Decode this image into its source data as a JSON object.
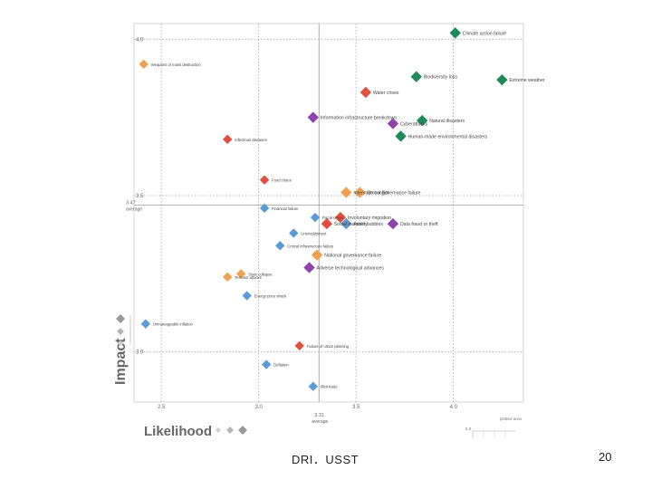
{
  "chart_data": {
    "type": "scatter",
    "title": "",
    "xlabel": "Likelihood",
    "ylabel": "Impact",
    "xlim": [
      2.36,
      4.36
    ],
    "ylim": [
      2.84,
      4.05
    ],
    "x_ticks": [
      "2.5",
      "3.0",
      "3.5",
      "4.0"
    ],
    "y_ticks": [
      "3.0",
      "3.5",
      "4.0"
    ],
    "x_average": {
      "value": 3.31,
      "label": "3.31",
      "sublabel": "average"
    },
    "y_average": {
      "value": 3.47,
      "label": "3.47",
      "sublabel": "average"
    },
    "grid": true,
    "legend_plotted_area": {
      "label": "plotted area",
      "value_label": "5.0"
    },
    "categories": {
      "economic": "#5b9bd5",
      "environmental": "#1e8a5a",
      "geopolitical": "#f0a050",
      "societal": "#e05040",
      "technological": "#8e44ad"
    },
    "points": [
      {
        "label": "Climate action failure",
        "x": 4.01,
        "y": 4.02,
        "category": "environmental"
      },
      {
        "label": "Weapons of mass destruction",
        "x": 2.41,
        "y": 3.92,
        "category": "geopolitical"
      },
      {
        "label": "Biodiversity loss",
        "x": 3.81,
        "y": 3.88,
        "category": "environmental"
      },
      {
        "label": "Extreme weather",
        "x": 4.25,
        "y": 3.87,
        "category": "environmental"
      },
      {
        "label": "Water crises",
        "x": 3.55,
        "y": 3.83,
        "category": "societal"
      },
      {
        "label": "Information infrastructure breakdown",
        "x": 3.28,
        "y": 3.75,
        "category": "technological"
      },
      {
        "label": "Natural disasters",
        "x": 3.84,
        "y": 3.74,
        "category": "environmental"
      },
      {
        "label": "Cyberattacks",
        "x": 3.69,
        "y": 3.73,
        "category": "technological"
      },
      {
        "label": "Human-made environmental disasters",
        "x": 3.73,
        "y": 3.69,
        "category": "environmental"
      },
      {
        "label": "Infectious diseases",
        "x": 2.84,
        "y": 3.68,
        "category": "societal"
      },
      {
        "label": "Food crises",
        "x": 3.03,
        "y": 3.55,
        "category": "societal"
      },
      {
        "label": "Interstate conflict",
        "x": 3.45,
        "y": 3.51,
        "category": "geopolitical"
      },
      {
        "label": "Global governance failure",
        "x": 3.52,
        "y": 3.51,
        "category": "geopolitical"
      },
      {
        "label": "Financial failure",
        "x": 3.03,
        "y": 3.46,
        "category": "economic"
      },
      {
        "label": "Fiscal crises",
        "x": 3.29,
        "y": 3.43,
        "category": "economic"
      },
      {
        "label": "Involuntary migration",
        "x": 3.42,
        "y": 3.43,
        "category": "societal"
      },
      {
        "label": "Social instability",
        "x": 3.35,
        "y": 3.41,
        "category": "societal"
      },
      {
        "label": "Asset bubbles",
        "x": 3.45,
        "y": 3.41,
        "category": "economic"
      },
      {
        "label": "Data fraud or theft",
        "x": 3.69,
        "y": 3.41,
        "category": "technological"
      },
      {
        "label": "Unemployment",
        "x": 3.18,
        "y": 3.38,
        "category": "economic"
      },
      {
        "label": "Critical infrastructure failure",
        "x": 3.11,
        "y": 3.34,
        "category": "economic"
      },
      {
        "label": "National governance failure",
        "x": 3.3,
        "y": 3.31,
        "category": "geopolitical"
      },
      {
        "label": "State collapse",
        "x": 2.91,
        "y": 3.25,
        "category": "geopolitical"
      },
      {
        "label": "Adverse technological advances",
        "x": 3.26,
        "y": 3.27,
        "category": "technological"
      },
      {
        "label": "Terrorist attacks",
        "x": 2.84,
        "y": 3.24,
        "category": "geopolitical"
      },
      {
        "label": "Energy price shock",
        "x": 2.94,
        "y": 3.18,
        "category": "economic"
      },
      {
        "label": "Unmanageable inflation",
        "x": 2.42,
        "y": 3.09,
        "category": "economic"
      },
      {
        "label": "Failure of urban planning",
        "x": 3.21,
        "y": 3.02,
        "category": "societal"
      },
      {
        "label": "Deflation",
        "x": 3.04,
        "y": 2.96,
        "category": "economic"
      },
      {
        "label": "Illicit trade",
        "x": 3.28,
        "y": 2.89,
        "category": "economic"
      }
    ]
  },
  "footer": {
    "text": "DRI．USST",
    "page_number": "20"
  }
}
